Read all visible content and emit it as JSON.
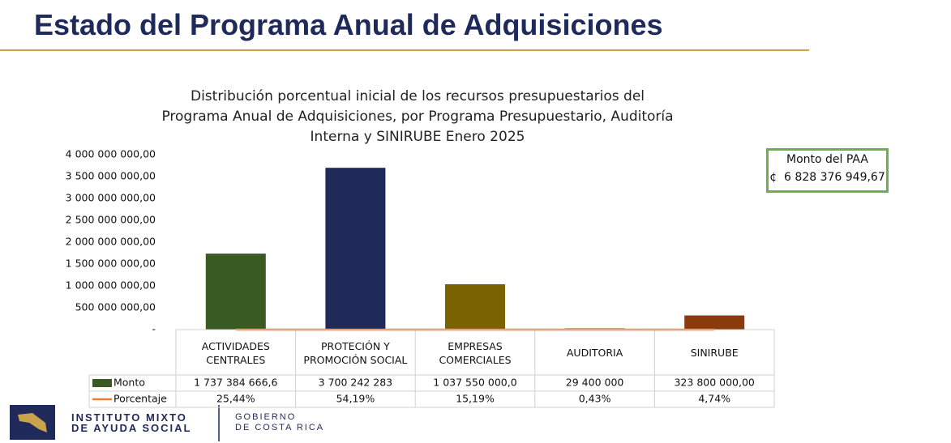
{
  "header": {
    "title": "Estado del Programa Anual de Adquisiciones"
  },
  "chart_data": {
    "type": "bar",
    "title": [
      "Distribución porcentual inicial de los recursos presupuestarios del",
      "Programa Anual de Adquisiciones, por Programa Presupuestario, Auditoría",
      "Interna y SINIRUBE Enero 2025"
    ],
    "categories": [
      "ACTIVIDADES CENTRALES",
      "PROTECIÓN Y PROMOCIÓN SOCIAL",
      "EMPRESAS COMERCIALES",
      "AUDITORIA",
      "SINIRUBE"
    ],
    "series": [
      {
        "name": "Monto",
        "color": "#3a5a23",
        "colors": [
          "#3a5a23",
          "#1f2a5a",
          "#7a6200",
          "#6b4a1a",
          "#8b3a0e"
        ],
        "values": [
          1737384666.6,
          3700242283,
          1037550000,
          29400000,
          323800000
        ],
        "value_labels": [
          "1 737 384 666,6",
          "3 700 242 283",
          "1 037 550 000,0",
          "29 400 000",
          "323 800 000,00"
        ]
      },
      {
        "name": "Porcentaje",
        "type": "line",
        "color": "#ed7d31",
        "values": [
          25.44,
          54.19,
          15.19,
          0.43,
          4.74
        ],
        "value_labels": [
          "25,44%",
          "54,19%",
          "15,19%",
          "0,43%",
          "4,74%"
        ]
      }
    ],
    "ylim": [
      0,
      4000000000
    ],
    "yticks": [
      {
        "value": 0,
        "label": "-"
      },
      {
        "value": 500000000,
        "label": "500 000 000,00"
      },
      {
        "value": 1000000000,
        "label": "1 000 000 000,00"
      },
      {
        "value": 1500000000,
        "label": "1 500 000 000,00"
      },
      {
        "value": 2000000000,
        "label": "2 000 000 000,00"
      },
      {
        "value": 2500000000,
        "label": "2 500 000 000,00"
      },
      {
        "value": 3000000000,
        "label": "3 000 000 000,00"
      },
      {
        "value": 3500000000,
        "label": "3 500 000 000,00"
      },
      {
        "value": 4000000000,
        "label": "4 000 000 000,00"
      }
    ],
    "grid": false
  },
  "callout": {
    "title": "Monto del PAA",
    "value": "¢  6 828 376 949,67"
  },
  "footer": {
    "institution": [
      "INSTITUTO MIXTO",
      "DE AYUDA SOCIAL"
    ],
    "government": [
      "GOBIERNO",
      "DE COSTA RICA"
    ]
  }
}
